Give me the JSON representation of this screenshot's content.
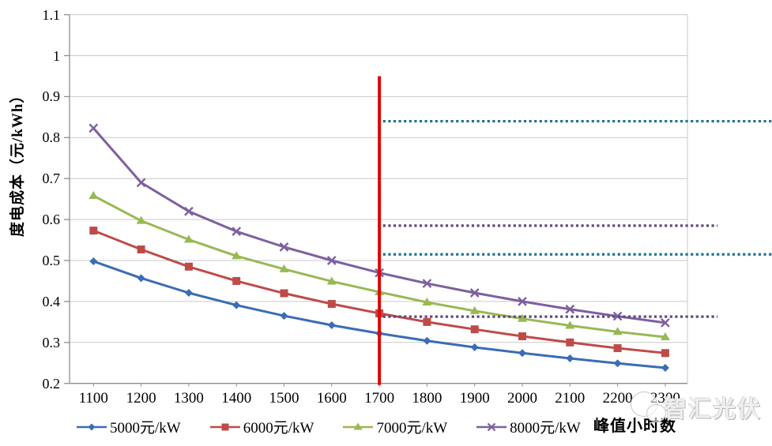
{
  "chart_data": {
    "type": "line",
    "title": "",
    "xlabel": "峰值小时数",
    "ylabel": "度电成本（元/kWh）",
    "x": [
      1100,
      1200,
      1300,
      1400,
      1500,
      1600,
      1700,
      1800,
      1900,
      2000,
      2100,
      2200,
      2300
    ],
    "x_tick_labels": [
      "1100",
      "1200",
      "1300",
      "1400",
      "1500",
      "1600",
      "1700",
      "1800",
      "1900",
      "2000",
      "2100",
      "2200",
      "2300"
    ],
    "y_tick_labels": [
      "0.2",
      "0.3",
      "0.4",
      "0.5",
      "0.6",
      "0.7",
      "0.8",
      "0.9",
      "1",
      "1.1"
    ],
    "xlim": [
      1100,
      2300
    ],
    "ylim": [
      0.2,
      1.1
    ],
    "grid": true,
    "legend_position": "bottom",
    "series": [
      {
        "name": "5000元/kW",
        "color": "#3B6CB5",
        "marker": "diamond",
        "values": [
          0.498,
          0.457,
          0.421,
          0.391,
          0.365,
          0.342,
          0.322,
          0.304,
          0.288,
          0.274,
          0.261,
          0.249,
          0.238
        ]
      },
      {
        "name": "6000元/kW",
        "color": "#BE4B48",
        "marker": "square",
        "values": [
          0.573,
          0.527,
          0.485,
          0.45,
          0.42,
          0.394,
          0.371,
          0.35,
          0.332,
          0.315,
          0.3,
          0.286,
          0.274
        ]
      },
      {
        "name": "7000元/kW",
        "color": "#98B954",
        "marker": "triangle",
        "values": [
          0.658,
          0.597,
          0.551,
          0.511,
          0.479,
          0.449,
          0.423,
          0.398,
          0.377,
          0.358,
          0.341,
          0.326,
          0.313
        ]
      },
      {
        "name": "8000元/kW",
        "color": "#7D60A0",
        "marker": "x",
        "values": [
          0.823,
          0.69,
          0.62,
          0.571,
          0.533,
          0.5,
          0.47,
          0.444,
          0.421,
          0.4,
          0.381,
          0.364,
          0.348
        ]
      }
    ],
    "annotations": {
      "vertical_line": {
        "x": 1700,
        "y_from": 0.2,
        "y_to": 0.95,
        "color": "#DC0806"
      },
      "reference_lines": [
        {
          "y": 0.84,
          "x_start": 1700,
          "color": "#1F7391",
          "style": "dotted",
          "extent": "image-right"
        },
        {
          "y": 0.585,
          "x_start": 1700,
          "color": "#5F4A7B",
          "style": "dotted",
          "extent": "past-plot"
        },
        {
          "y": 0.515,
          "x_start": 1700,
          "color": "#1F7391",
          "style": "dotted",
          "extent": "image-right"
        },
        {
          "y": 0.363,
          "x_start": 1700,
          "color": "#5F4A7B",
          "style": "dotted",
          "extent": "past-plot"
        }
      ]
    },
    "axis_color": "#8E8E8E",
    "grid_color": "#C9C9C9"
  },
  "watermark": {
    "text": "智汇光伏"
  }
}
